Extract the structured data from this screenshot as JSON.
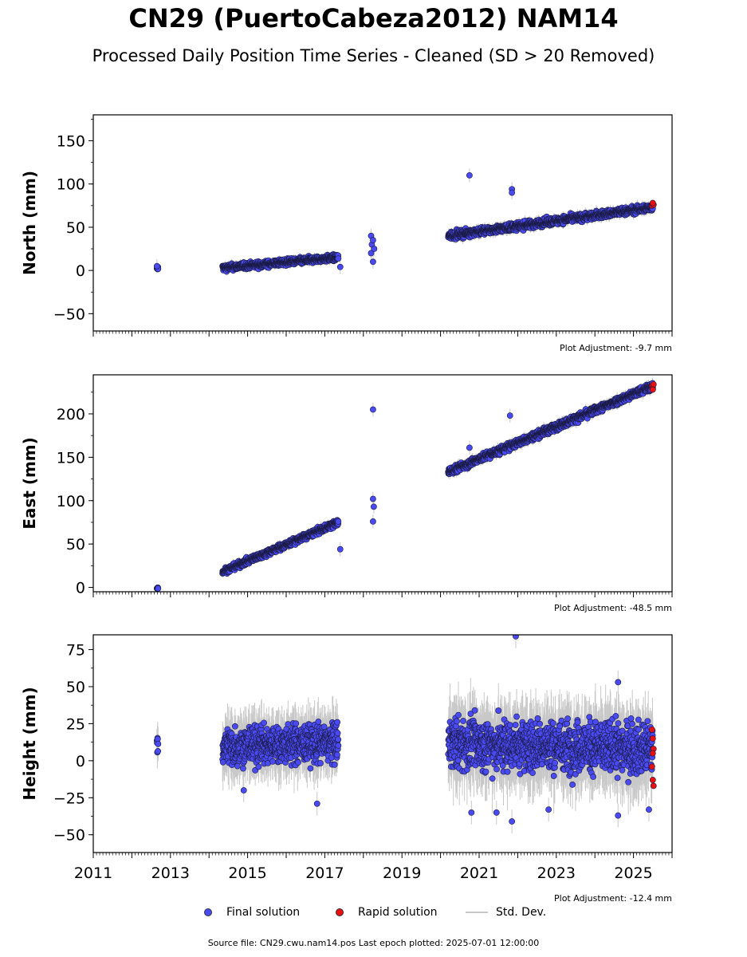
{
  "title": "CN29 (PuertoCabeza2012) NAM14",
  "subtitle": "Processed Daily Position Time Series - Cleaned (SD > 20 Removed)",
  "footer": "Source file: CN29.cwu.nam14.pos  Last epoch plotted: 2025-07-01 12:00:00",
  "colors": {
    "final": "#4a4af4",
    "final_edge": "#1a1a40",
    "rapid": "#e81010",
    "stddev": "#c8c8c8"
  },
  "legend": {
    "final": "Final solution",
    "rapid": "Rapid solution",
    "stddev": "Std. Dev."
  },
  "chart_data": [
    {
      "type": "scatter",
      "panel": "north",
      "ylabel": "North (mm)",
      "adjustment": "Plot Adjustment: -9.7 mm",
      "xlim": [
        2011,
        2026
      ],
      "ylim": [
        -70,
        180
      ],
      "yticks": [
        -50,
        0,
        50,
        100,
        150
      ],
      "x_tick_labels_shown": false,
      "segments": [
        {
          "x0": 2012.65,
          "x1": 2012.68,
          "y0": 1,
          "y1": 3,
          "noise": 2
        },
        {
          "x0": 2014.35,
          "x1": 2017.35,
          "y0": 3,
          "y1": 15,
          "noise": 2.5
        },
        {
          "x0": 2020.2,
          "x1": 2025.5,
          "y0": 40,
          "y1": 73,
          "noise": 3
        }
      ],
      "outliers": [
        [
          2012.65,
          5
        ],
        [
          2017.4,
          4
        ],
        [
          2018.2,
          40
        ],
        [
          2018.2,
          20
        ],
        [
          2018.25,
          10
        ],
        [
          2018.22,
          30
        ],
        [
          2018.28,
          25
        ],
        [
          2018.25,
          35
        ],
        [
          2020.75,
          110
        ],
        [
          2021.85,
          94
        ],
        [
          2021.85,
          90
        ]
      ],
      "rapid": [
        [
          2025.48,
          75
        ],
        [
          2025.5,
          77
        ],
        [
          2025.52,
          76
        ],
        [
          2025.5,
          78
        ]
      ]
    },
    {
      "type": "scatter",
      "panel": "east",
      "ylabel": "East (mm)",
      "adjustment": "Plot Adjustment: -48.5 mm",
      "xlim": [
        2011,
        2026
      ],
      "ylim": [
        -5,
        245
      ],
      "yticks": [
        0,
        50,
        100,
        150,
        200
      ],
      "x_tick_labels_shown": false,
      "segments": [
        {
          "x0": 2012.65,
          "x1": 2012.68,
          "y0": -1,
          "y1": 0,
          "noise": 0.8
        },
        {
          "x0": 2014.35,
          "x1": 2017.35,
          "y0": 18,
          "y1": 75,
          "noise": 2.5
        },
        {
          "x0": 2020.2,
          "x1": 2025.5,
          "y0": 133,
          "y1": 232,
          "noise": 3
        }
      ],
      "outliers": [
        [
          2017.4,
          44
        ],
        [
          2018.25,
          205
        ],
        [
          2018.25,
          102
        ],
        [
          2018.27,
          93
        ],
        [
          2018.25,
          76
        ],
        [
          2020.75,
          161
        ],
        [
          2021.8,
          198
        ]
      ],
      "rapid": [
        [
          2025.48,
          232
        ],
        [
          2025.5,
          230
        ],
        [
          2025.52,
          234
        ],
        [
          2025.5,
          228
        ]
      ]
    },
    {
      "type": "scatter",
      "panel": "height",
      "ylabel": "Height (mm)",
      "adjustment": "Plot Adjustment: -12.4 mm",
      "xlim": [
        2011,
        2026
      ],
      "ylim": [
        -62,
        85
      ],
      "yticks": [
        -50,
        -25,
        0,
        25,
        50,
        75
      ],
      "x_tick_labels": [
        "2011",
        "2013",
        "2015",
        "2017",
        "2019",
        "2021",
        "2023",
        "2025"
      ],
      "x_tick_values": [
        2011,
        2013,
        2015,
        2017,
        2019,
        2021,
        2023,
        2025
      ],
      "segments": [
        {
          "x0": 2012.65,
          "x1": 2012.68,
          "y0": 10,
          "y1": 10,
          "noise": 6
        },
        {
          "x0": 2014.35,
          "x1": 2017.35,
          "y0": 10,
          "y1": 12,
          "noise": 9
        },
        {
          "x0": 2020.2,
          "x1": 2025.5,
          "y0": 12,
          "y1": 8,
          "noise": 12
        }
      ],
      "outliers": [
        [
          2016.8,
          -29
        ],
        [
          2014.9,
          -20
        ],
        [
          2021.95,
          84
        ],
        [
          2021.85,
          -41
        ],
        [
          2021.45,
          -35
        ],
        [
          2024.6,
          53
        ],
        [
          2024.6,
          -37
        ],
        [
          2025.4,
          -33
        ],
        [
          2022.8,
          -33
        ],
        [
          2020.8,
          -35
        ]
      ],
      "rapid": [
        [
          2025.48,
          21
        ],
        [
          2025.5,
          15
        ],
        [
          2025.52,
          8
        ],
        [
          2025.5,
          5
        ],
        [
          2025.48,
          -4
        ],
        [
          2025.5,
          -13
        ],
        [
          2025.52,
          -17
        ]
      ]
    }
  ]
}
